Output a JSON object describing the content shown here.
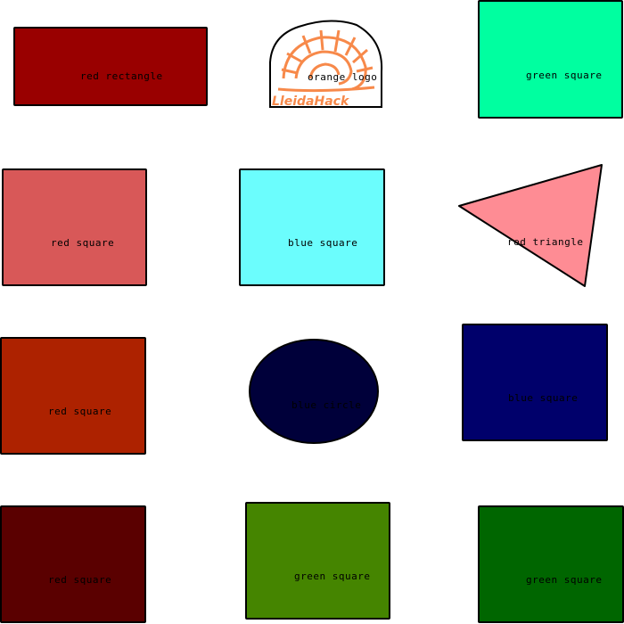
{
  "shapes": [
    {
      "id": "s1",
      "label": "red rectangle",
      "color": "#990000"
    },
    {
      "id": "s2",
      "label": "orange logo",
      "color": "#f7894a",
      "logo_text": "LleidaHack"
    },
    {
      "id": "s3",
      "label": "green square",
      "color": "#00ffa0"
    },
    {
      "id": "s4",
      "label": "red square",
      "color": "#d85858"
    },
    {
      "id": "s5",
      "label": "blue square",
      "color": "#6bfdfd"
    },
    {
      "id": "s6",
      "label": "red triangle",
      "color": "#fe8c94"
    },
    {
      "id": "s7",
      "label": "red square",
      "color": "#ad2200"
    },
    {
      "id": "s8",
      "label": "blue circle",
      "color": "#00003a"
    },
    {
      "id": "s9",
      "label": "blue square",
      "color": "#00006b"
    },
    {
      "id": "s10",
      "label": "red square",
      "color": "#5a0000"
    },
    {
      "id": "s11",
      "label": "green square",
      "color": "#458500"
    },
    {
      "id": "s12",
      "label": "green square",
      "color": "#006600"
    }
  ]
}
